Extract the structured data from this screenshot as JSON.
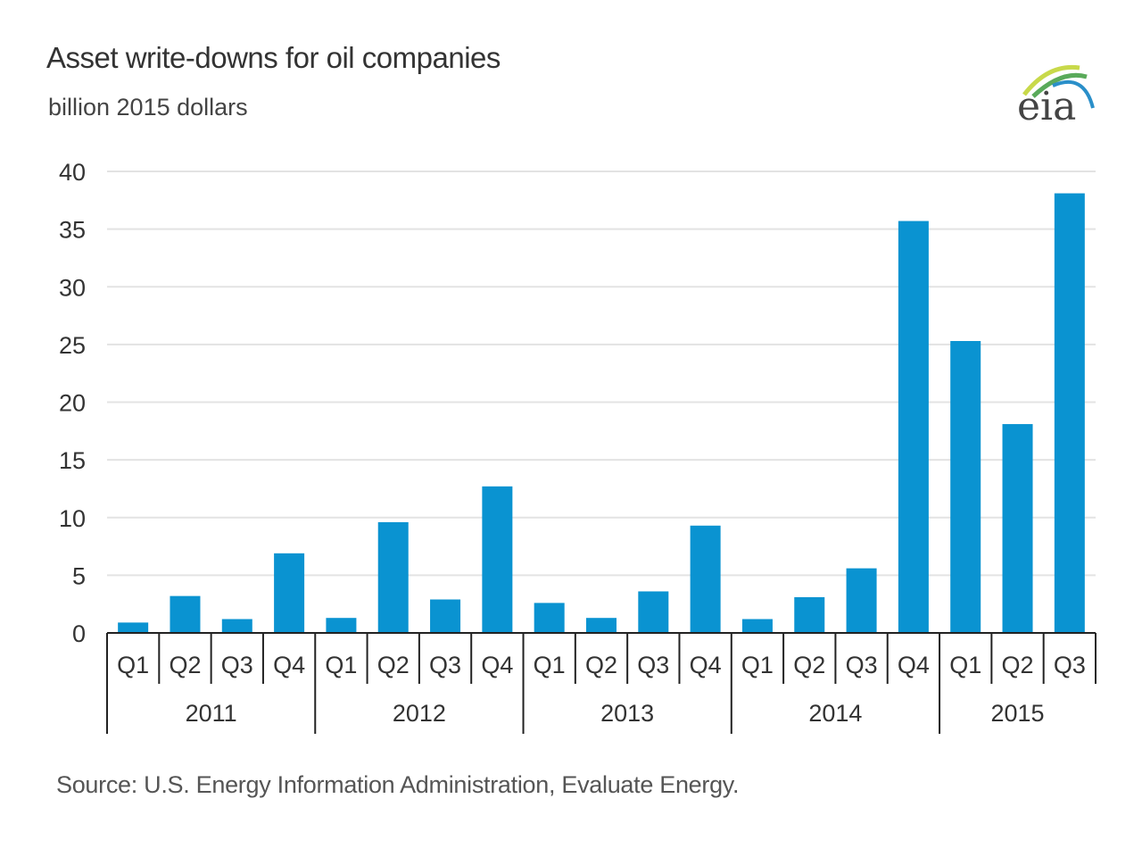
{
  "chart_data": {
    "type": "bar",
    "title": "Asset write-downs for oil companies",
    "subtitle": "billion 2015 dollars",
    "ylabel": "",
    "xlabel": "",
    "ylim": [
      0,
      40
    ],
    "yticks": [
      0,
      5,
      10,
      15,
      20,
      25,
      30,
      35,
      40
    ],
    "grid": true,
    "color": "#0a93d1",
    "years": [
      "2011",
      "2012",
      "2013",
      "2014",
      "2015"
    ],
    "categories": [
      {
        "year": "2011",
        "quarter": "Q1"
      },
      {
        "year": "2011",
        "quarter": "Q2"
      },
      {
        "year": "2011",
        "quarter": "Q3"
      },
      {
        "year": "2011",
        "quarter": "Q4"
      },
      {
        "year": "2012",
        "quarter": "Q1"
      },
      {
        "year": "2012",
        "quarter": "Q2"
      },
      {
        "year": "2012",
        "quarter": "Q3"
      },
      {
        "year": "2012",
        "quarter": "Q4"
      },
      {
        "year": "2013",
        "quarter": "Q1"
      },
      {
        "year": "2013",
        "quarter": "Q2"
      },
      {
        "year": "2013",
        "quarter": "Q3"
      },
      {
        "year": "2013",
        "quarter": "Q4"
      },
      {
        "year": "2014",
        "quarter": "Q1"
      },
      {
        "year": "2014",
        "quarter": "Q2"
      },
      {
        "year": "2014",
        "quarter": "Q3"
      },
      {
        "year": "2014",
        "quarter": "Q4"
      },
      {
        "year": "2015",
        "quarter": "Q1"
      },
      {
        "year": "2015",
        "quarter": "Q2"
      },
      {
        "year": "2015",
        "quarter": "Q3"
      }
    ],
    "values": [
      0.9,
      3.2,
      1.2,
      6.9,
      1.3,
      9.6,
      2.9,
      12.7,
      2.6,
      1.3,
      3.6,
      9.3,
      1.2,
      3.1,
      5.6,
      35.7,
      25.3,
      18.1,
      38.1
    ]
  },
  "source": "Source:  U.S. Energy Information Administration, Evaluate Energy.",
  "logo": {
    "text": "eia"
  }
}
